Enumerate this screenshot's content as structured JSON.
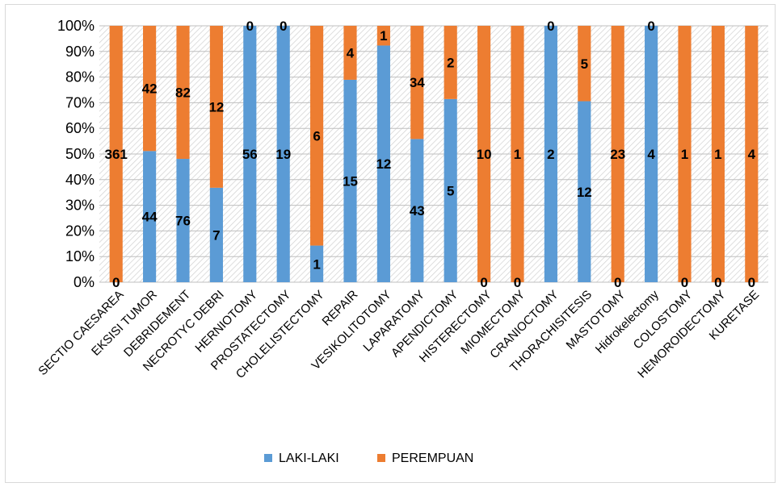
{
  "chart_data": {
    "type": "bar",
    "stacked": true,
    "normalized": true,
    "categories": [
      "SECTIO CAESAREA",
      "EKSISI TUMOR",
      "DEBRIDEMENT",
      "NECROTYC DEBRI",
      "HERNIOTOMY",
      "PROSTATECTOMY",
      "CHOLELISTECTOMY",
      "REPAIR",
      "VESIKOLITOTOMY",
      "LAPARATOMY",
      "APENDICTOMY",
      "HISTERECTOMY",
      "MIOMECTOMY",
      "CRANIOCTOMY",
      "THORACHISITESIS",
      "MASTOTOMY",
      "Hidrokelectomy",
      "COLOSTOMY",
      "HEMOROIDECTOMY",
      "KURETASE"
    ],
    "series": [
      {
        "name": "LAKI-LAKI",
        "color": "#5b9bd5",
        "values": [
          0,
          44,
          76,
          7,
          56,
          19,
          1,
          15,
          12,
          43,
          5,
          0,
          0,
          2,
          12,
          0,
          4,
          0,
          0,
          0
        ]
      },
      {
        "name": "PEREMPUAN",
        "color": "#ed7d31",
        "values": [
          361,
          42,
          82,
          12,
          0,
          0,
          6,
          4,
          1,
          34,
          2,
          10,
          1,
          0,
          5,
          23,
          0,
          1,
          1,
          4
        ]
      }
    ],
    "ylim": [
      0,
      100
    ],
    "y_ticks": [
      "0%",
      "10%",
      "20%",
      "30%",
      "40%",
      "50%",
      "60%",
      "70%",
      "80%",
      "90%",
      "100%"
    ],
    "title": "",
    "xlabel": "",
    "ylabel": "",
    "grid": true,
    "legend_position": "bottom"
  }
}
